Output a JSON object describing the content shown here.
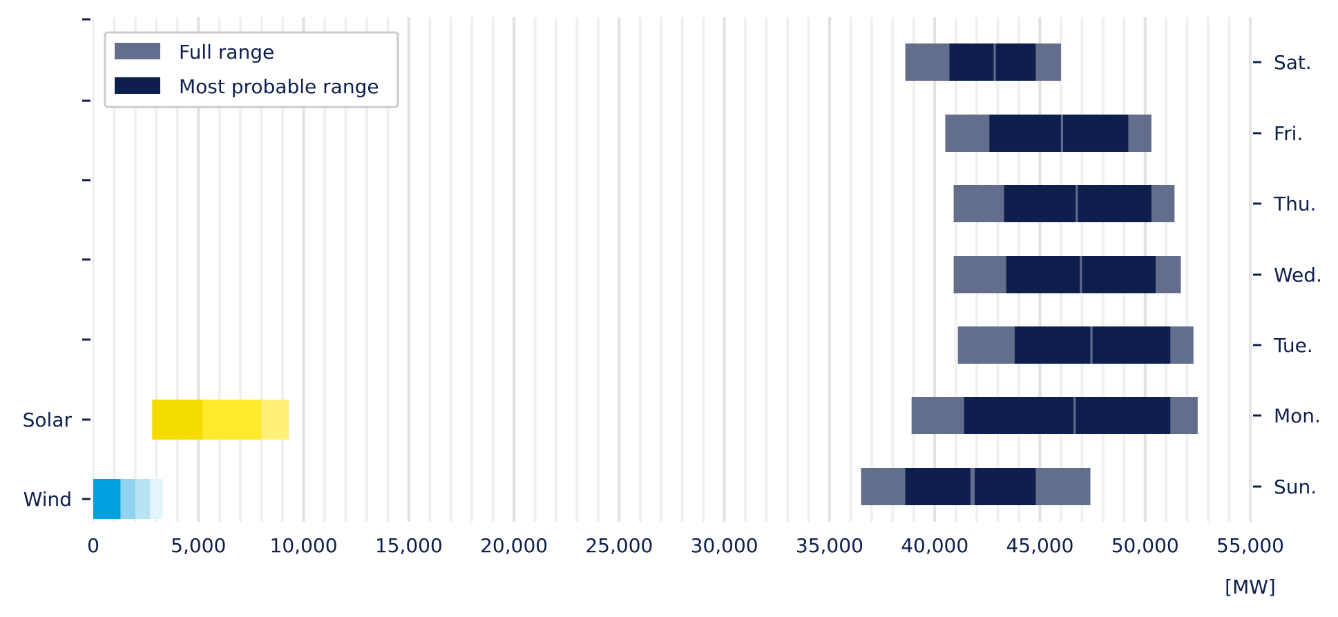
{
  "chart_data": {
    "type": "bar",
    "orientation": "horizontal",
    "x_unit_label": "[MW]",
    "xlim": [
      0,
      55000
    ],
    "x_ticks": [
      "0",
      "5,000",
      "10,000",
      "15,000",
      "20,000",
      "25,000",
      "30,000",
      "35,000",
      "40,000",
      "45,000",
      "50,000",
      "55,000"
    ],
    "x_tick_values": [
      0,
      5000,
      10000,
      15000,
      20000,
      25000,
      30000,
      35000,
      40000,
      45000,
      50000,
      55000
    ],
    "grid": "vertical",
    "legend": {
      "placement": "top-left",
      "entries": [
        {
          "label": "Full range",
          "color": "#636d8c"
        },
        {
          "label": "Most probable range",
          "color": "#0f1f4d"
        }
      ]
    },
    "left_axis_labels": [
      "Wind",
      "Solar"
    ],
    "right_axis_labels": [
      "Sun.",
      "Mon.",
      "Tue.",
      "Wed.",
      "Thu.",
      "Fri.",
      "Sat."
    ],
    "renewables": [
      {
        "name": "Wind",
        "segments": [
          {
            "from": 0,
            "to": 1300,
            "color": "#009fdf"
          },
          {
            "from": 1300,
            "to": 2000,
            "color": "#8fd3ef"
          },
          {
            "from": 2000,
            "to": 2700,
            "color": "#b8e3f5"
          },
          {
            "from": 2700,
            "to": 3300,
            "color": "#e2f4fc"
          }
        ]
      },
      {
        "name": "Solar",
        "segments": [
          {
            "from": 2800,
            "to": 5200,
            "color": "#f5dc00"
          },
          {
            "from": 5200,
            "to": 8000,
            "color": "#ffea2d"
          },
          {
            "from": 8000,
            "to": 9300,
            "color": "#fff07a"
          }
        ]
      }
    ],
    "demand": [
      {
        "day": "Sun.",
        "full": [
          36500,
          47400
        ],
        "probable": [
          [
            38600,
            41700
          ],
          [
            41900,
            44800
          ]
        ]
      },
      {
        "day": "Mon.",
        "full": [
          38900,
          52500
        ],
        "probable": [
          [
            41400,
            46600
          ],
          [
            46700,
            51200
          ]
        ]
      },
      {
        "day": "Tue.",
        "full": [
          41100,
          52300
        ],
        "probable": [
          [
            43800,
            47400
          ],
          [
            47500,
            51200
          ]
        ]
      },
      {
        "day": "Wed.",
        "full": [
          40900,
          51700
        ],
        "probable": [
          [
            43400,
            46900
          ],
          [
            47000,
            50500
          ]
        ]
      },
      {
        "day": "Thu.",
        "full": [
          40900,
          51400
        ],
        "probable": [
          [
            43300,
            46700
          ],
          [
            46800,
            50300
          ]
        ]
      },
      {
        "day": "Fri.",
        "full": [
          40500,
          50300
        ],
        "probable": [
          [
            42600,
            46000
          ],
          [
            46100,
            49200
          ]
        ]
      },
      {
        "day": "Sat.",
        "full": [
          38600,
          46000
        ],
        "probable": [
          [
            40700,
            42800
          ],
          [
            42900,
            44800
          ]
        ]
      }
    ]
  }
}
